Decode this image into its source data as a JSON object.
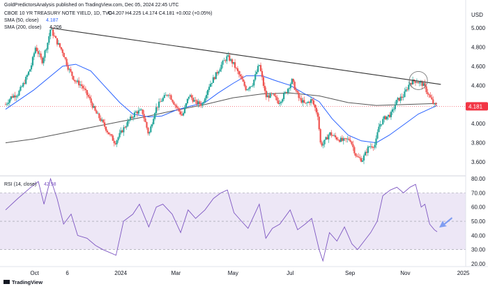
{
  "header": {
    "published": "GoldPredictorsAnalysis published on TradingView.com, Dec 05, 2024 22:45 UTC"
  },
  "legend": {
    "symbol": "CBOE 10 YR TREASURY NOTE YIELD, 1D, TVC",
    "ohlc": "O4.207  H4.225  L4.174  C4.181  +0.002 (+0.05%)",
    "sma50_label": "SMA (50, close)",
    "sma50_value": "4.187",
    "sma200_label": "SMA (200, close)",
    "sma200_value": "4.206",
    "rsi_label": "RSI (14, close)",
    "rsi_value": "42.58"
  },
  "price_axis": {
    "currency": "USD",
    "ticks": [
      "5.000",
      "4.800",
      "4.600",
      "4.400",
      "4.200",
      "4.000",
      "3.800",
      "3.600"
    ],
    "last_price": "4.181"
  },
  "rsi_axis": {
    "ticks": [
      "80.00",
      "70.00",
      "60.00",
      "50.00",
      "40.00",
      "30.00",
      "20.00"
    ]
  },
  "time_axis": {
    "ticks": [
      "Oct",
      "6",
      "2024",
      "Mar",
      "May",
      "Jul",
      "Sep",
      "Nov",
      "2025"
    ]
  },
  "footer": {
    "brand": "TradingView"
  },
  "colors": {
    "candle_up": "#26a69a",
    "candle_down": "#ef5350",
    "sma50": "#2962ff",
    "sma200": "#555555",
    "rsi_line": "#7e57c2",
    "rsi_band": "#ede7f6",
    "last_price_tag": "#f23645",
    "trendline": "#333333"
  },
  "chart_data": {
    "type": "candlestick",
    "timeframe": "1D",
    "price_range": [
      3.5,
      5.1
    ],
    "rsi_range": [
      20,
      82
    ],
    "rsi_levels": [
      70,
      50,
      30
    ],
    "grid": false,
    "close_path": [
      {
        "date": "2023-09-01",
        "close": 4.2
      },
      {
        "date": "2023-09-07",
        "close": 4.28
      },
      {
        "date": "2023-09-14",
        "close": 4.31
      },
      {
        "date": "2023-09-21",
        "close": 4.43
      },
      {
        "date": "2023-09-28",
        "close": 4.59
      },
      {
        "date": "2023-10-03",
        "close": 4.8
      },
      {
        "date": "2023-10-10",
        "close": 4.65
      },
      {
        "date": "2023-10-16",
        "close": 4.85
      },
      {
        "date": "2023-10-19",
        "close": 4.99
      },
      {
        "date": "2023-10-26",
        "close": 4.85
      },
      {
        "date": "2023-11-01",
        "close": 4.75
      },
      {
        "date": "2023-11-07",
        "close": 4.58
      },
      {
        "date": "2023-11-14",
        "close": 4.45
      },
      {
        "date": "2023-11-21",
        "close": 4.4
      },
      {
        "date": "2023-11-29",
        "close": 4.27
      },
      {
        "date": "2023-12-06",
        "close": 4.12
      },
      {
        "date": "2023-12-13",
        "close": 4.02
      },
      {
        "date": "2023-12-20",
        "close": 3.9
      },
      {
        "date": "2023-12-27",
        "close": 3.8
      },
      {
        "date": "2024-01-03",
        "close": 3.92
      },
      {
        "date": "2024-01-10",
        "close": 4.02
      },
      {
        "date": "2024-01-18",
        "close": 4.12
      },
      {
        "date": "2024-01-25",
        "close": 4.13
      },
      {
        "date": "2024-02-01",
        "close": 3.88
      },
      {
        "date": "2024-02-08",
        "close": 4.15
      },
      {
        "date": "2024-02-15",
        "close": 4.25
      },
      {
        "date": "2024-02-22",
        "close": 4.32
      },
      {
        "date": "2024-03-01",
        "close": 4.18
      },
      {
        "date": "2024-03-08",
        "close": 4.08
      },
      {
        "date": "2024-03-15",
        "close": 4.3
      },
      {
        "date": "2024-03-22",
        "close": 4.22
      },
      {
        "date": "2024-03-29",
        "close": 4.2
      },
      {
        "date": "2024-04-05",
        "close": 4.39
      },
      {
        "date": "2024-04-12",
        "close": 4.5
      },
      {
        "date": "2024-04-19",
        "close": 4.62
      },
      {
        "date": "2024-04-25",
        "close": 4.7
      },
      {
        "date": "2024-05-01",
        "close": 4.63
      },
      {
        "date": "2024-05-08",
        "close": 4.5
      },
      {
        "date": "2024-05-15",
        "close": 4.36
      },
      {
        "date": "2024-05-22",
        "close": 4.42
      },
      {
        "date": "2024-05-29",
        "close": 4.62
      },
      {
        "date": "2024-06-05",
        "close": 4.28
      },
      {
        "date": "2024-06-12",
        "close": 4.3
      },
      {
        "date": "2024-06-19",
        "close": 4.22
      },
      {
        "date": "2024-06-26",
        "close": 4.32
      },
      {
        "date": "2024-07-03",
        "close": 4.45
      },
      {
        "date": "2024-07-10",
        "close": 4.27
      },
      {
        "date": "2024-07-17",
        "close": 4.2
      },
      {
        "date": "2024-07-24",
        "close": 4.25
      },
      {
        "date": "2024-07-31",
        "close": 4.08
      },
      {
        "date": "2024-08-02",
        "close": 3.8
      },
      {
        "date": "2024-08-05",
        "close": 3.78
      },
      {
        "date": "2024-08-12",
        "close": 3.9
      },
      {
        "date": "2024-08-19",
        "close": 3.85
      },
      {
        "date": "2024-08-26",
        "close": 3.82
      },
      {
        "date": "2024-09-03",
        "close": 3.84
      },
      {
        "date": "2024-09-10",
        "close": 3.65
      },
      {
        "date": "2024-09-16",
        "close": 3.62
      },
      {
        "date": "2024-09-23",
        "close": 3.76
      },
      {
        "date": "2024-09-30",
        "close": 3.78
      },
      {
        "date": "2024-10-04",
        "close": 3.98
      },
      {
        "date": "2024-10-10",
        "close": 4.06
      },
      {
        "date": "2024-10-17",
        "close": 4.1
      },
      {
        "date": "2024-10-23",
        "close": 4.24
      },
      {
        "date": "2024-10-30",
        "close": 4.29
      },
      {
        "date": "2024-11-06",
        "close": 4.43
      },
      {
        "date": "2024-11-13",
        "close": 4.45
      },
      {
        "date": "2024-11-15",
        "close": 4.43
      },
      {
        "date": "2024-11-20",
        "close": 4.41
      },
      {
        "date": "2024-11-26",
        "close": 4.3
      },
      {
        "date": "2024-12-02",
        "close": 4.19
      },
      {
        "date": "2024-12-05",
        "close": 4.18
      }
    ],
    "sma50_path": [
      {
        "date": "2023-09-01",
        "value": 4.15
      },
      {
        "date": "2023-10-01",
        "value": 4.35
      },
      {
        "date": "2023-11-01",
        "value": 4.6
      },
      {
        "date": "2023-11-15",
        "value": 4.62
      },
      {
        "date": "2023-12-01",
        "value": 4.55
      },
      {
        "date": "2023-12-15",
        "value": 4.4
      },
      {
        "date": "2024-01-01",
        "value": 4.22
      },
      {
        "date": "2024-01-15",
        "value": 4.1
      },
      {
        "date": "2024-02-01",
        "value": 4.07
      },
      {
        "date": "2024-02-15",
        "value": 4.08
      },
      {
        "date": "2024-03-01",
        "value": 4.14
      },
      {
        "date": "2024-03-15",
        "value": 4.18
      },
      {
        "date": "2024-04-01",
        "value": 4.22
      },
      {
        "date": "2024-04-15",
        "value": 4.32
      },
      {
        "date": "2024-05-01",
        "value": 4.42
      },
      {
        "date": "2024-05-15",
        "value": 4.5
      },
      {
        "date": "2024-06-01",
        "value": 4.5
      },
      {
        "date": "2024-06-15",
        "value": 4.45
      },
      {
        "date": "2024-07-01",
        "value": 4.4
      },
      {
        "date": "2024-07-15",
        "value": 4.32
      },
      {
        "date": "2024-08-01",
        "value": 4.23
      },
      {
        "date": "2024-08-15",
        "value": 4.05
      },
      {
        "date": "2024-09-01",
        "value": 3.88
      },
      {
        "date": "2024-09-15",
        "value": 3.82
      },
      {
        "date": "2024-10-01",
        "value": 3.8
      },
      {
        "date": "2024-10-15",
        "value": 3.88
      },
      {
        "date": "2024-11-01",
        "value": 4.0
      },
      {
        "date": "2024-11-15",
        "value": 4.1
      },
      {
        "date": "2024-12-05",
        "value": 4.19
      }
    ],
    "sma200_path": [
      {
        "date": "2023-09-01",
        "value": 3.8
      },
      {
        "date": "2023-10-01",
        "value": 3.84
      },
      {
        "date": "2023-11-01",
        "value": 3.9
      },
      {
        "date": "2023-12-01",
        "value": 3.96
      },
      {
        "date": "2024-01-01",
        "value": 4.02
      },
      {
        "date": "2024-02-01",
        "value": 4.08
      },
      {
        "date": "2024-03-01",
        "value": 4.14
      },
      {
        "date": "2024-04-01",
        "value": 4.2
      },
      {
        "date": "2024-05-01",
        "value": 4.27
      },
      {
        "date": "2024-06-01",
        "value": 4.31
      },
      {
        "date": "2024-07-01",
        "value": 4.32
      },
      {
        "date": "2024-08-01",
        "value": 4.29
      },
      {
        "date": "2024-09-01",
        "value": 4.22
      },
      {
        "date": "2024-10-01",
        "value": 4.19
      },
      {
        "date": "2024-11-01",
        "value": 4.2
      },
      {
        "date": "2024-12-05",
        "value": 4.21
      }
    ],
    "rsi_path": [
      {
        "date": "2023-09-01",
        "value": 58
      },
      {
        "date": "2023-09-14",
        "value": 66
      },
      {
        "date": "2023-09-28",
        "value": 74
      },
      {
        "date": "2023-10-06",
        "value": 78
      },
      {
        "date": "2023-10-12",
        "value": 62
      },
      {
        "date": "2023-10-19",
        "value": 80
      },
      {
        "date": "2023-10-26",
        "value": 66
      },
      {
        "date": "2023-11-02",
        "value": 48
      },
      {
        "date": "2023-11-10",
        "value": 55
      },
      {
        "date": "2023-11-17",
        "value": 40
      },
      {
        "date": "2023-11-27",
        "value": 38
      },
      {
        "date": "2023-12-06",
        "value": 33
      },
      {
        "date": "2023-12-14",
        "value": 30
      },
      {
        "date": "2023-12-21",
        "value": 28
      },
      {
        "date": "2023-12-28",
        "value": 26
      },
      {
        "date": "2024-01-05",
        "value": 50
      },
      {
        "date": "2024-01-15",
        "value": 55
      },
      {
        "date": "2024-01-22",
        "value": 62
      },
      {
        "date": "2024-02-01",
        "value": 46
      },
      {
        "date": "2024-02-09",
        "value": 60
      },
      {
        "date": "2024-02-16",
        "value": 62
      },
      {
        "date": "2024-02-26",
        "value": 55
      },
      {
        "date": "2024-03-06",
        "value": 42
      },
      {
        "date": "2024-03-14",
        "value": 58
      },
      {
        "date": "2024-03-22",
        "value": 52
      },
      {
        "date": "2024-04-01",
        "value": 58
      },
      {
        "date": "2024-04-10",
        "value": 66
      },
      {
        "date": "2024-04-18",
        "value": 70
      },
      {
        "date": "2024-04-25",
        "value": 72
      },
      {
        "date": "2024-05-02",
        "value": 56
      },
      {
        "date": "2024-05-10",
        "value": 50
      },
      {
        "date": "2024-05-17",
        "value": 45
      },
      {
        "date": "2024-05-29",
        "value": 62
      },
      {
        "date": "2024-06-05",
        "value": 38
      },
      {
        "date": "2024-06-12",
        "value": 45
      },
      {
        "date": "2024-06-20",
        "value": 48
      },
      {
        "date": "2024-07-01",
        "value": 58
      },
      {
        "date": "2024-07-09",
        "value": 44
      },
      {
        "date": "2024-07-17",
        "value": 48
      },
      {
        "date": "2024-07-24",
        "value": 52
      },
      {
        "date": "2024-08-01",
        "value": 30
      },
      {
        "date": "2024-08-05",
        "value": 22
      },
      {
        "date": "2024-08-12",
        "value": 42
      },
      {
        "date": "2024-08-20",
        "value": 36
      },
      {
        "date": "2024-08-28",
        "value": 46
      },
      {
        "date": "2024-09-05",
        "value": 34
      },
      {
        "date": "2024-09-11",
        "value": 30
      },
      {
        "date": "2024-09-18",
        "value": 36
      },
      {
        "date": "2024-09-25",
        "value": 42
      },
      {
        "date": "2024-10-02",
        "value": 50
      },
      {
        "date": "2024-10-08",
        "value": 68
      },
      {
        "date": "2024-10-16",
        "value": 72
      },
      {
        "date": "2024-10-23",
        "value": 74
      },
      {
        "date": "2024-10-30",
        "value": 70
      },
      {
        "date": "2024-11-06",
        "value": 74
      },
      {
        "date": "2024-11-12",
        "value": 76
      },
      {
        "date": "2024-11-18",
        "value": 60
      },
      {
        "date": "2024-11-22",
        "value": 62
      },
      {
        "date": "2024-11-27",
        "value": 48
      },
      {
        "date": "2024-12-02",
        "value": 44
      },
      {
        "date": "2024-12-05",
        "value": 42.58
      }
    ],
    "trendline": {
      "from": {
        "date": "2023-10-19",
        "value": 5.0
      },
      "to": {
        "date": "2024-12-09",
        "value": 4.41
      }
    },
    "highlight_circle": {
      "date": "2024-11-15",
      "value": 4.45
    }
  }
}
